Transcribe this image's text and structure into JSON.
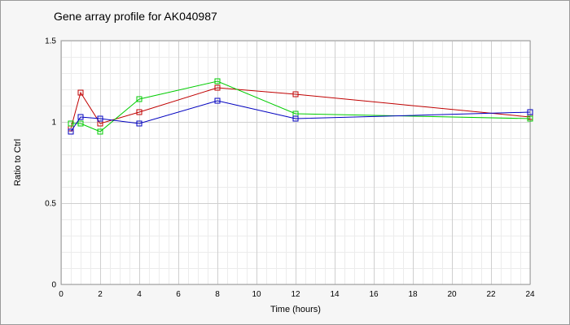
{
  "chart_data": {
    "type": "line",
    "title": "Gene array profile for AK040987",
    "xlabel": "Time (hours)",
    "ylabel": "Ratio to Ctrl",
    "xlim": [
      0,
      24
    ],
    "ylim": [
      0,
      1.5
    ],
    "x_ticks": [
      0,
      2,
      4,
      6,
      8,
      10,
      12,
      14,
      16,
      18,
      20,
      22,
      24
    ],
    "y_ticks": [
      0,
      0.5,
      1,
      1.5
    ],
    "y_tick_labels": [
      "0",
      "0.5",
      "1",
      "1.5"
    ],
    "grid": true,
    "legend": "none",
    "series": [
      {
        "color": "#c00000",
        "marker": "square",
        "x": [
          0.5,
          1,
          2,
          4,
          8,
          12,
          24
        ],
        "y": [
          0.96,
          1.18,
          0.99,
          1.06,
          1.21,
          1.17,
          1.03
        ]
      },
      {
        "color": "#00cc00",
        "marker": "square",
        "x": [
          0.5,
          1,
          2,
          4,
          8,
          12,
          24
        ],
        "y": [
          0.99,
          0.99,
          0.94,
          1.14,
          1.25,
          1.05,
          1.02
        ]
      },
      {
        "color": "#0000c0",
        "marker": "square",
        "x": [
          0.5,
          1,
          2,
          4,
          8,
          12,
          24
        ],
        "y": [
          0.94,
          1.03,
          1.02,
          0.99,
          1.13,
          1.02,
          1.06
        ]
      }
    ]
  }
}
